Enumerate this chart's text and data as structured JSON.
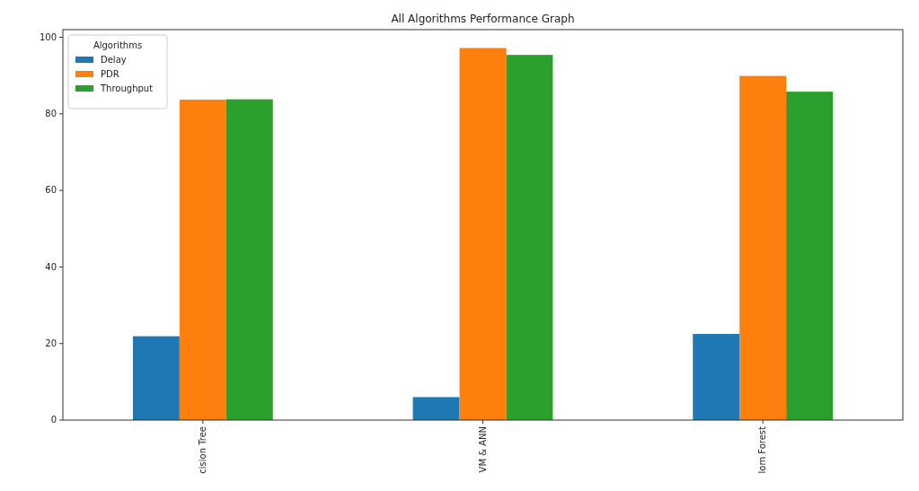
{
  "chart_data": {
    "type": "bar",
    "title": "All Algorithms Performance Graph",
    "categories": [
      "cision Tree",
      "VM & ANN",
      "lom Forest"
    ],
    "series": [
      {
        "name": "Delay",
        "color": "#1f77b4",
        "values": [
          21.9,
          6.0,
          22.5
        ]
      },
      {
        "name": "PDR",
        "color": "#ff7f0e",
        "values": [
          83.7,
          97.2,
          89.9
        ]
      },
      {
        "name": "Throughput",
        "color": "#2ca02c",
        "values": [
          83.8,
          95.4,
          85.8
        ]
      }
    ],
    "ylim": [
      0,
      102
    ],
    "yticks": [
      0,
      20,
      40,
      60,
      80,
      100
    ],
    "legend": "top left",
    "legend_title": "Algorithms",
    "grid": false
  }
}
